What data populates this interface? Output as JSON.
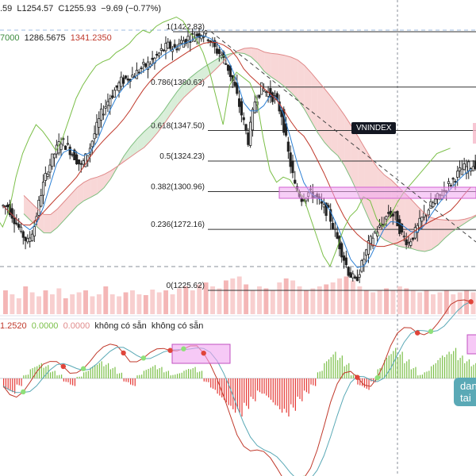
{
  "header": {
    "ohlc_text": ".59  L1254.57  C1255.93  −9.69 (−0.77%)",
    "ichimoku_values": [
      "7000",
      "1286.5675",
      "1341.2350"
    ],
    "macd_values": [
      "1.2520",
      "0.0000",
      "0.0000"
    ],
    "macd_na_1": "không có sẵn",
    "macd_na_2": "không có sẵn"
  },
  "symbol_badge": "VNINDEX",
  "tooltip_text": "dan tai",
  "colors": {
    "up": "#26a69a",
    "down": "#ef5350",
    "candle": "#222222",
    "kumo_bull": "#c9e7c9",
    "kumo_bear": "#f5c6c6",
    "tenkan": "#2a7fd4",
    "kijun": "#c0392b",
    "chikou": "#7bbf48",
    "fib_line": "#333333",
    "highlight": "#f0a5f0",
    "macd_hist_pos": "#7bbf48",
    "macd_hist_neg": "#e53935",
    "macd_line": "#c0392b",
    "signal_line": "#5aa9b6"
  },
  "chart_data": {
    "type": "candlestick",
    "symbol": "VNINDEX",
    "fibonacci": [
      {
        "level": "1",
        "price": 1422.83
      },
      {
        "level": "0.786",
        "price": 1380.63
      },
      {
        "level": "0.618",
        "price": 1347.5
      },
      {
        "level": "0.5",
        "price": 1324.23
      },
      {
        "level": "0.382",
        "price": 1300.96
      },
      {
        "level": "0.236",
        "price": 1272.16
      },
      {
        "level": "0",
        "price": 1225.62
      }
    ],
    "price_range": [
      1220,
      1430
    ],
    "close_path": [
      1290,
      1280,
      1270,
      1262,
      1275,
      1300,
      1318,
      1330,
      1340,
      1335,
      1328,
      1320,
      1330,
      1345,
      1360,
      1370,
      1378,
      1385,
      1388,
      1390,
      1395,
      1398,
      1402,
      1408,
      1412,
      1410,
      1415,
      1418,
      1420,
      1422,
      1419,
      1410,
      1405,
      1395,
      1380,
      1360,
      1340,
      1370,
      1380,
      1376,
      1372,
      1360,
      1330,
      1305,
      1296,
      1300,
      1298,
      1290,
      1285,
      1270,
      1255,
      1240,
      1232,
      1245,
      1260,
      1270,
      1275,
      1285,
      1282,
      1268,
      1262,
      1270,
      1280,
      1288,
      1294,
      1300,
      1306,
      1312,
      1318,
      1320,
      1322
    ],
    "volume_relative": [
      0.6,
      0.5,
      0.4,
      0.7,
      0.55,
      0.45,
      0.6,
      0.5,
      0.65,
      0.4,
      0.5,
      0.55,
      0.6,
      0.45,
      0.5,
      0.7,
      0.5,
      0.45,
      0.55,
      0.6,
      0.5,
      0.48,
      0.62,
      0.55,
      0.6,
      0.5,
      0.65,
      0.7,
      0.6,
      0.75,
      0.8,
      0.7,
      0.65,
      0.85,
      0.9,
      0.95,
      0.75,
      0.6,
      0.7,
      0.65,
      0.6,
      0.8,
      0.9,
      0.85,
      0.7,
      0.6,
      0.65,
      0.7,
      0.75,
      0.8,
      0.9,
      0.95,
      0.85,
      0.7,
      0.6,
      0.55,
      0.6,
      0.65,
      0.6,
      0.7,
      0.65,
      0.6,
      0.55,
      0.6,
      0.5,
      0.55,
      0.6,
      0.5,
      0.55,
      0.6,
      0.55
    ],
    "macd_hist": [
      -0.3,
      -0.4,
      -0.2,
      0.1,
      0.3,
      0.4,
      0.35,
      0.2,
      0.1,
      -0.1,
      -0.2,
      0.05,
      0.2,
      0.35,
      0.45,
      0.4,
      0.3,
      0.15,
      -0.1,
      -0.2,
      0.1,
      0.25,
      0.35,
      0.3,
      0.2,
      0.1,
      0.15,
      0.25,
      0.3,
      0.2,
      -0.1,
      -0.3,
      -0.5,
      -0.7,
      -0.9,
      -1.0,
      -0.8,
      -0.6,
      -0.4,
      -0.5,
      -0.7,
      -0.9,
      -1.0,
      -0.85,
      -0.6,
      -0.4,
      -0.2,
      0.2,
      0.5,
      0.7,
      0.6,
      0.4,
      0.1,
      -0.2,
      -0.3,
      -0.1,
      0.3,
      0.6,
      0.8,
      0.7,
      0.5,
      0.3,
      0.1,
      0.2,
      0.4,
      0.6,
      0.7,
      0.8,
      0.6,
      0.5,
      0.4
    ]
  }
}
